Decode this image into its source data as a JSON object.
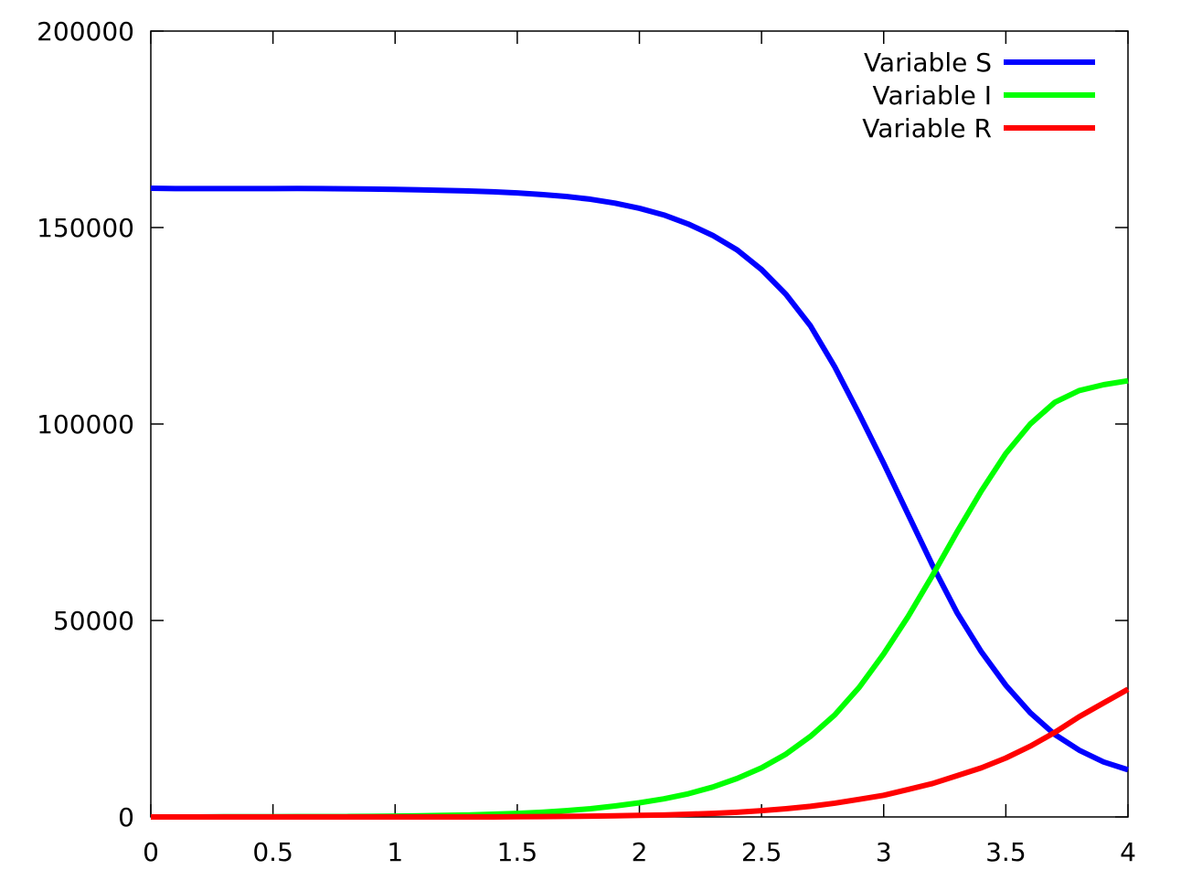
{
  "chart_data": {
    "type": "line",
    "title": "",
    "xlabel": "",
    "ylabel": "",
    "xlim": [
      0,
      4
    ],
    "ylim": [
      0,
      200000
    ],
    "x_ticks": [
      "0",
      "0.5",
      "1",
      "1.5",
      "2",
      "2.5",
      "3",
      "3.5",
      "4"
    ],
    "y_ticks": [
      "0",
      "50000",
      "100000",
      "150000",
      "200000"
    ],
    "grid": false,
    "legend_position": "top-right",
    "x": [
      0,
      0.1,
      0.2,
      0.3,
      0.4,
      0.5,
      0.6,
      0.7,
      0.8,
      0.9,
      1.0,
      1.1,
      1.2,
      1.3,
      1.4,
      1.5,
      1.6,
      1.7,
      1.8,
      1.9,
      2.0,
      2.1,
      2.2,
      2.3,
      2.4,
      2.5,
      2.6,
      2.7,
      2.8,
      2.9,
      3.0,
      3.1,
      3.2,
      3.3,
      3.4,
      3.5,
      3.6,
      3.7,
      3.8,
      3.9,
      4.0
    ],
    "series": [
      {
        "name": "Variable S",
        "color": "#0000ff",
        "values": [
          160000,
          159900,
          159900,
          159900,
          159900,
          159900,
          159950,
          159900,
          159850,
          159800,
          159700,
          159600,
          159450,
          159300,
          159100,
          158800,
          158400,
          157900,
          157200,
          156200,
          154900,
          153200,
          150900,
          148000,
          144300,
          139300,
          133000,
          125000,
          114500,
          102500,
          90000,
          77000,
          64000,
          52000,
          42000,
          33500,
          26500,
          21000,
          17000,
          14000,
          12000
        ]
      },
      {
        "name": "Variable I",
        "color": "#00ff00",
        "values": [
          0,
          0,
          0,
          50,
          50,
          50,
          100,
          100,
          100,
          150,
          200,
          300,
          400,
          500,
          700,
          900,
          1200,
          1600,
          2100,
          2800,
          3600,
          4600,
          5900,
          7600,
          9800,
          12500,
          16000,
          20500,
          26000,
          33000,
          41500,
          51000,
          61500,
          72500,
          83000,
          92500,
          100000,
          105500,
          108500,
          110000,
          111000
        ]
      },
      {
        "name": "Variable R",
        "color": "#ff0000",
        "values": [
          0,
          0,
          0,
          0,
          0,
          0,
          0,
          0,
          0,
          0,
          0,
          0,
          0,
          0,
          0,
          50,
          100,
          150,
          200,
          300,
          400,
          500,
          700,
          900,
          1200,
          1600,
          2100,
          2700,
          3500,
          4500,
          5500,
          7000,
          8500,
          10500,
          12500,
          15000,
          18000,
          21500,
          25500,
          29000,
          32500
        ]
      }
    ]
  }
}
